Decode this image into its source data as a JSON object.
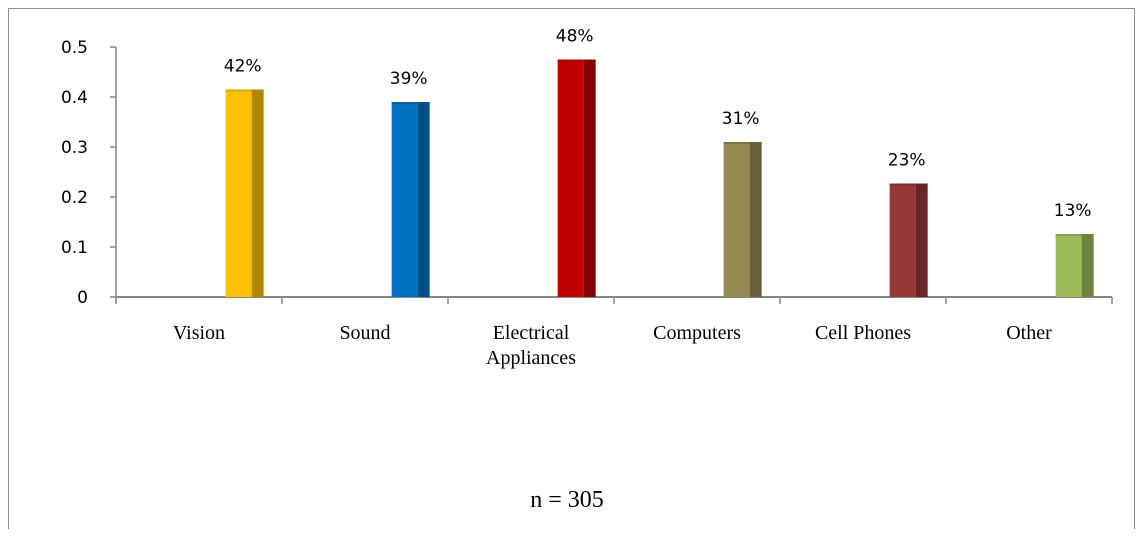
{
  "chart_data": {
    "type": "bar",
    "categories": [
      [
        "Vision"
      ],
      [
        "Sound"
      ],
      [
        "Electrical",
        "Appliances"
      ],
      [
        "Computers"
      ],
      [
        "Cell Phones"
      ],
      [
        "Other"
      ]
    ],
    "values": [
      0.415,
      0.39,
      0.475,
      0.31,
      0.227,
      0.126
    ],
    "data_labels": [
      "42%",
      "39%",
      "48%",
      "31%",
      "23%",
      "13%"
    ],
    "colors": [
      "#FFC000",
      "#0070C0",
      "#C00000",
      "#948A54",
      "#953735",
      "#9BBB59"
    ],
    "side_colors": [
      "#B38600",
      "#004E86",
      "#860000",
      "#68613B",
      "#682725",
      "#6D833E"
    ],
    "y_ticks": [
      "0",
      "0.1",
      "0.2",
      "0.3",
      "0.4",
      "0.5"
    ],
    "ylim": [
      0,
      0.5
    ],
    "title": "",
    "xlabel": "",
    "ylabel": "",
    "grid": false,
    "legend": "none"
  },
  "note": "n = 305"
}
